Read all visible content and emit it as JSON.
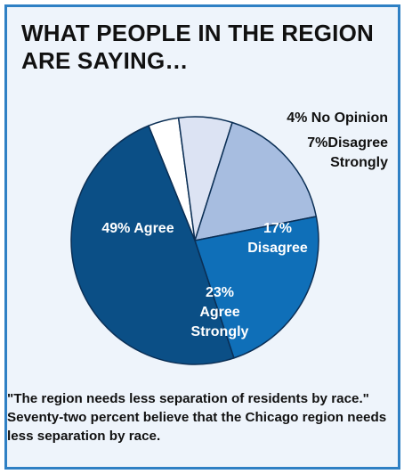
{
  "title": "WHAT PEOPLE IN THE REGION ARE SAYING…",
  "caption": "\"The region needs less separation of residents by race.\" Seventy-two percent believe that the Chicago region needs less separation by race.",
  "colors": {
    "border": "#2f80c4",
    "panel_bg": "#eef4fb"
  },
  "chart_data": {
    "type": "pie",
    "slices": [
      {
        "percent": 4,
        "label_lines": [
          "4% No Opinion"
        ],
        "color": "#ffffff",
        "label_color": "#111111"
      },
      {
        "percent": 7,
        "label_lines": [
          "7%Disagree",
          "Strongly"
        ],
        "color": "#dce3f3",
        "label_color": "#111111"
      },
      {
        "percent": 17,
        "label_lines": [
          "17%",
          "Disagree"
        ],
        "color": "#a7bde0",
        "label_color": "#ffffff"
      },
      {
        "percent": 23,
        "label_lines": [
          "23%",
          "Agree",
          "Strongly"
        ],
        "color": "#0f6fb8",
        "label_color": "#ffffff"
      },
      {
        "percent": 49,
        "label_lines": [
          "49% Agree"
        ],
        "color": "#0b4f86",
        "label_color": "#ffffff"
      }
    ]
  }
}
